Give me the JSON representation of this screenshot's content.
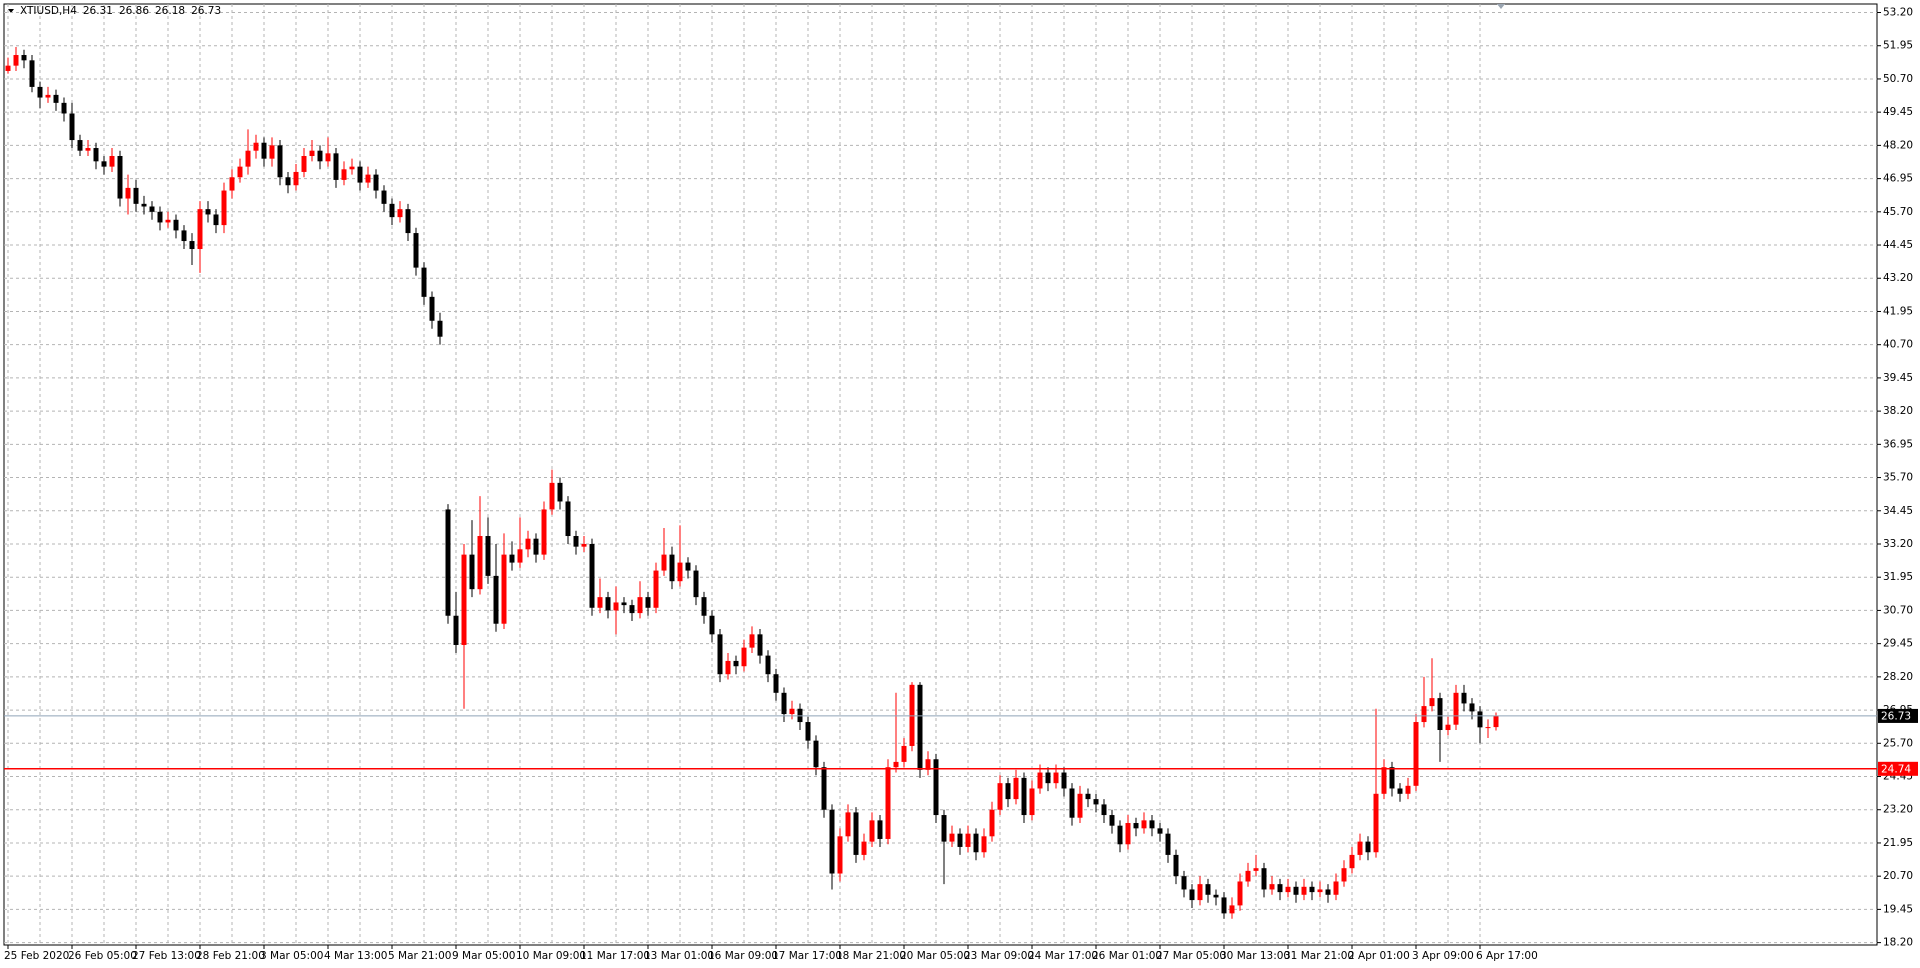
{
  "chart_data": {
    "type": "candlestick",
    "symbol": "XTIUSD,H4",
    "up_color": "#ff0000",
    "down_color": "#000000",
    "grid": true,
    "grid_color": "#b4b4b4",
    "bid_line_color": "#8fa3b8",
    "hline": {
      "value": 24.74,
      "color": "#ff0000"
    },
    "ylim": [
      18.11,
      53.52
    ],
    "yticks": [
      {
        "value": 53.2,
        "label": "53.20"
      },
      51.95,
      {
        "value": 50.7,
        "label": "50.70"
      },
      49.45,
      {
        "value": 48.2,
        "label": "48.20"
      },
      46.95,
      {
        "value": 45.7,
        "label": "45.70"
      },
      44.45,
      {
        "value": 43.2,
        "label": "43.20"
      },
      41.95,
      {
        "value": 40.7,
        "label": "40.70"
      },
      39.45,
      {
        "value": 38.2,
        "label": "38.20"
      },
      36.95,
      {
        "value": 35.7,
        "label": "35.70"
      },
      34.45,
      {
        "value": 33.2,
        "label": "33.20"
      },
      31.95,
      {
        "value": 30.7,
        "label": "30.70"
      },
      29.45,
      {
        "value": 28.2,
        "label": "28.20"
      },
      26.95,
      {
        "value": 25.7,
        "label": "25.70"
      },
      24.45,
      {
        "value": 23.2,
        "label": "23.20"
      },
      21.95,
      {
        "value": 20.7,
        "label": "20.70"
      },
      19.45,
      {
        "value": 18.2,
        "label": "18.20"
      }
    ],
    "categories": [
      "25 Feb 2020",
      null,
      null,
      null,
      null,
      null,
      null,
      null,
      "26 Feb 05:00",
      null,
      null,
      null,
      null,
      null,
      null,
      null,
      "27 Feb 13:00",
      null,
      null,
      null,
      null,
      null,
      null,
      null,
      "28 Feb 21:00",
      null,
      null,
      null,
      null,
      null,
      null,
      null,
      "3 Mar 05:00",
      null,
      null,
      null,
      null,
      null,
      null,
      null,
      "4 Mar 13:00",
      null,
      null,
      null,
      null,
      null,
      null,
      null,
      "5 Mar 21:00",
      null,
      null,
      null,
      null,
      null,
      null,
      null,
      "9 Mar 05:00",
      null,
      null,
      null,
      null,
      null,
      null,
      null,
      "10 Mar 09:00",
      null,
      null,
      null,
      null,
      null,
      null,
      null,
      "11 Mar 17:00",
      null,
      null,
      null,
      null,
      null,
      null,
      null,
      "13 Mar 01:00",
      null,
      null,
      null,
      null,
      null,
      null,
      null,
      "16 Mar 09:00",
      null,
      null,
      null,
      null,
      null,
      null,
      null,
      "17 Mar 17:00",
      null,
      null,
      null,
      null,
      null,
      null,
      null,
      "18 Mar 21:00",
      null,
      null,
      null,
      null,
      null,
      null,
      null,
      "20 Mar 05:00",
      null,
      null,
      null,
      null,
      null,
      null,
      null,
      "23 Mar 09:00",
      null,
      null,
      null,
      null,
      null,
      null,
      null,
      "24 Mar 17:00",
      null,
      null,
      null,
      null,
      null,
      null,
      null,
      "26 Mar 01:00",
      null,
      null,
      null,
      null,
      null,
      null,
      null,
      "27 Mar 05:00",
      null,
      null,
      null,
      null,
      null,
      null,
      null,
      "30 Mar 13:00",
      null,
      null,
      null,
      null,
      null,
      null,
      null,
      "31 Mar 21:00",
      null,
      null,
      null,
      null,
      null,
      null,
      null,
      "2 Apr 01:00",
      null,
      null,
      null,
      null,
      null,
      null,
      null,
      "3 Apr 09:00",
      null,
      null,
      null,
      null,
      null,
      null,
      null,
      "6 Apr 17:00",
      null,
      null
    ],
    "ohlc": [
      [
        51.0,
        51.5,
        50.9,
        51.2
      ],
      [
        51.2,
        51.9,
        51.0,
        51.6
      ],
      [
        51.6,
        51.8,
        51.1,
        51.4
      ],
      [
        51.4,
        51.6,
        50.2,
        50.4
      ],
      [
        50.4,
        50.6,
        49.6,
        50.0
      ],
      [
        50.0,
        50.4,
        49.8,
        50.1
      ],
      [
        50.1,
        50.3,
        49.5,
        49.8
      ],
      [
        49.8,
        50.0,
        49.1,
        49.4
      ],
      [
        49.4,
        49.8,
        48.1,
        48.4
      ],
      [
        48.4,
        48.6,
        47.8,
        48.0
      ],
      [
        48.0,
        48.4,
        47.8,
        48.1
      ],
      [
        48.1,
        48.3,
        47.3,
        47.6
      ],
      [
        47.6,
        47.8,
        47.1,
        47.4
      ],
      [
        47.4,
        48.1,
        47.2,
        47.8
      ],
      [
        47.8,
        48.0,
        45.9,
        46.2
      ],
      [
        46.2,
        47.1,
        45.6,
        46.6
      ],
      [
        46.6,
        46.9,
        45.7,
        46.0
      ],
      [
        46.0,
        46.3,
        45.6,
        45.9
      ],
      [
        45.9,
        46.1,
        45.4,
        45.7
      ],
      [
        45.7,
        45.9,
        45.0,
        45.3
      ],
      [
        45.3,
        45.7,
        45.1,
        45.4
      ],
      [
        45.4,
        45.6,
        44.7,
        45.0
      ],
      [
        45.0,
        45.2,
        44.3,
        44.6
      ],
      [
        44.6,
        44.9,
        43.7,
        44.3
      ],
      [
        44.3,
        46.1,
        43.4,
        45.8
      ],
      [
        45.8,
        46.1,
        45.3,
        45.6
      ],
      [
        45.6,
        45.8,
        44.9,
        45.2
      ],
      [
        45.2,
        46.8,
        44.9,
        46.5
      ],
      [
        46.5,
        47.3,
        46.2,
        47.0
      ],
      [
        47.0,
        47.7,
        46.8,
        47.4
      ],
      [
        47.4,
        48.8,
        47.1,
        48.0
      ],
      [
        48.0,
        48.6,
        47.7,
        48.3
      ],
      [
        48.3,
        48.5,
        47.4,
        47.7
      ],
      [
        47.7,
        48.5,
        47.4,
        48.2
      ],
      [
        48.2,
        48.4,
        46.7,
        47.0
      ],
      [
        47.0,
        47.2,
        46.4,
        46.7
      ],
      [
        46.7,
        47.5,
        46.5,
        47.2
      ],
      [
        47.2,
        48.1,
        47.0,
        47.8
      ],
      [
        47.8,
        48.4,
        47.6,
        48.0
      ],
      [
        48.0,
        48.2,
        47.3,
        47.6
      ],
      [
        47.6,
        48.5,
        47.4,
        47.9
      ],
      [
        47.9,
        48.1,
        46.6,
        46.9
      ],
      [
        46.9,
        47.6,
        46.7,
        47.3
      ],
      [
        47.3,
        47.7,
        47.1,
        47.4
      ],
      [
        47.4,
        47.6,
        46.5,
        46.8
      ],
      [
        46.8,
        47.4,
        46.6,
        47.1
      ],
      [
        47.1,
        47.3,
        46.2,
        46.5
      ],
      [
        46.5,
        46.7,
        45.7,
        46.0
      ],
      [
        46.0,
        46.2,
        45.2,
        45.5
      ],
      [
        45.5,
        46.1,
        45.3,
        45.8
      ],
      [
        45.8,
        46.0,
        44.6,
        44.9
      ],
      [
        44.9,
        45.1,
        43.3,
        43.6
      ],
      [
        43.6,
        43.8,
        42.2,
        42.5
      ],
      [
        42.5,
        42.7,
        41.3,
        41.6
      ],
      [
        41.6,
        41.9,
        40.7,
        41.0
      ],
      [
        34.5,
        34.7,
        30.2,
        30.5
      ],
      [
        30.5,
        31.4,
        29.1,
        29.4
      ],
      [
        29.4,
        33.2,
        27.0,
        32.8
      ],
      [
        32.8,
        34.1,
        31.2,
        31.5
      ],
      [
        31.5,
        35.0,
        31.3,
        33.5
      ],
      [
        33.5,
        34.2,
        31.7,
        32.0
      ],
      [
        32.0,
        33.2,
        29.9,
        30.2
      ],
      [
        30.2,
        33.6,
        30.0,
        32.8
      ],
      [
        32.8,
        33.3,
        32.2,
        32.5
      ],
      [
        32.5,
        34.2,
        32.3,
        33.0
      ],
      [
        33.0,
        33.7,
        32.7,
        33.4
      ],
      [
        33.4,
        33.6,
        32.5,
        32.8
      ],
      [
        32.8,
        34.8,
        32.6,
        34.5
      ],
      [
        34.5,
        36.0,
        34.3,
        35.5
      ],
      [
        35.5,
        35.7,
        34.5,
        34.8
      ],
      [
        34.8,
        35.0,
        33.2,
        33.5
      ],
      [
        33.5,
        33.7,
        32.8,
        33.1
      ],
      [
        33.1,
        33.5,
        32.9,
        33.2
      ],
      [
        33.2,
        33.4,
        30.5,
        30.8
      ],
      [
        30.8,
        31.9,
        30.6,
        31.2
      ],
      [
        31.2,
        31.4,
        30.4,
        30.7
      ],
      [
        30.7,
        31.6,
        29.8,
        31.0
      ],
      [
        31.0,
        31.2,
        30.6,
        30.9
      ],
      [
        30.9,
        31.1,
        30.3,
        30.6
      ],
      [
        30.6,
        31.8,
        30.4,
        31.2
      ],
      [
        31.2,
        31.4,
        30.5,
        30.8
      ],
      [
        30.8,
        32.5,
        30.6,
        32.2
      ],
      [
        32.2,
        33.8,
        32.0,
        32.8
      ],
      [
        32.8,
        33.1,
        31.5,
        31.8
      ],
      [
        31.8,
        33.9,
        31.6,
        32.5
      ],
      [
        32.5,
        32.7,
        31.9,
        32.2
      ],
      [
        32.2,
        32.4,
        30.9,
        31.2
      ],
      [
        31.2,
        31.4,
        30.2,
        30.5
      ],
      [
        30.5,
        30.7,
        29.5,
        29.8
      ],
      [
        29.8,
        30.0,
        28.0,
        28.3
      ],
      [
        28.3,
        29.1,
        28.1,
        28.8
      ],
      [
        28.8,
        29.0,
        28.3,
        28.6
      ],
      [
        28.6,
        29.6,
        28.4,
        29.3
      ],
      [
        29.3,
        30.1,
        29.1,
        29.8
      ],
      [
        29.8,
        30.0,
        28.7,
        29.0
      ],
      [
        29.0,
        29.2,
        28.0,
        28.3
      ],
      [
        28.3,
        28.5,
        27.3,
        27.6
      ],
      [
        27.6,
        27.8,
        26.5,
        26.8
      ],
      [
        26.8,
        27.3,
        26.6,
        27.0
      ],
      [
        27.0,
        27.2,
        26.2,
        26.5
      ],
      [
        26.5,
        26.7,
        25.5,
        25.8
      ],
      [
        25.8,
        26.0,
        24.5,
        24.8
      ],
      [
        24.8,
        25.0,
        22.9,
        23.2
      ],
      [
        23.2,
        23.4,
        20.2,
        20.8
      ],
      [
        20.8,
        22.5,
        20.5,
        22.2
      ],
      [
        22.2,
        23.4,
        22.0,
        23.1
      ],
      [
        23.1,
        23.3,
        21.2,
        21.5
      ],
      [
        21.5,
        22.3,
        21.3,
        22.0
      ],
      [
        22.0,
        23.1,
        21.8,
        22.8
      ],
      [
        22.8,
        23.0,
        21.8,
        22.1
      ],
      [
        22.1,
        25.1,
        21.9,
        24.8
      ],
      [
        24.8,
        27.6,
        24.6,
        25.0
      ],
      [
        25.0,
        25.9,
        24.8,
        25.6
      ],
      [
        25.6,
        28.0,
        25.4,
        27.9
      ],
      [
        27.9,
        28.0,
        24.4,
        24.7
      ],
      [
        24.7,
        25.4,
        24.5,
        25.1
      ],
      [
        25.1,
        25.3,
        22.7,
        23.0
      ],
      [
        23.0,
        23.2,
        20.4,
        22.0
      ],
      [
        22.0,
        22.6,
        21.8,
        22.3
      ],
      [
        22.3,
        22.5,
        21.5,
        21.8
      ],
      [
        21.8,
        22.6,
        21.6,
        22.3
      ],
      [
        22.3,
        22.5,
        21.3,
        21.6
      ],
      [
        21.6,
        22.5,
        21.4,
        22.2
      ],
      [
        22.2,
        23.5,
        22.0,
        23.2
      ],
      [
        23.2,
        24.5,
        23.0,
        24.2
      ],
      [
        24.2,
        24.4,
        23.3,
        23.6
      ],
      [
        23.6,
        24.7,
        23.4,
        24.4
      ],
      [
        24.4,
        24.6,
        22.7,
        23.0
      ],
      [
        23.0,
        24.3,
        22.8,
        24.0
      ],
      [
        24.0,
        24.9,
        23.8,
        24.6
      ],
      [
        24.6,
        24.8,
        23.9,
        24.2
      ],
      [
        24.2,
        24.9,
        24.0,
        24.6
      ],
      [
        24.6,
        24.8,
        23.7,
        24.0
      ],
      [
        24.0,
        24.2,
        22.6,
        22.9
      ],
      [
        22.9,
        24.1,
        22.7,
        23.8
      ],
      [
        23.8,
        24.0,
        23.3,
        23.6
      ],
      [
        23.6,
        23.8,
        23.1,
        23.4
      ],
      [
        23.4,
        23.6,
        22.7,
        23.0
      ],
      [
        23.0,
        23.2,
        22.3,
        22.6
      ],
      [
        22.6,
        22.8,
        21.6,
        21.9
      ],
      [
        21.9,
        23.0,
        21.7,
        22.7
      ],
      [
        22.7,
        22.9,
        22.2,
        22.5
      ],
      [
        22.5,
        23.1,
        22.3,
        22.8
      ],
      [
        22.8,
        23.0,
        22.2,
        22.5
      ],
      [
        22.5,
        22.7,
        22.0,
        22.3
      ],
      [
        22.3,
        22.5,
        21.2,
        21.5
      ],
      [
        21.5,
        21.7,
        20.4,
        20.7
      ],
      [
        20.7,
        20.9,
        19.9,
        20.2
      ],
      [
        20.2,
        20.4,
        19.5,
        19.8
      ],
      [
        19.8,
        20.7,
        19.6,
        20.4
      ],
      [
        20.4,
        20.6,
        19.7,
        20.0
      ],
      [
        20.0,
        20.2,
        19.6,
        19.9
      ],
      [
        19.9,
        20.1,
        19.1,
        19.3
      ],
      [
        19.3,
        19.9,
        19.1,
        19.6
      ],
      [
        19.6,
        20.8,
        19.4,
        20.5
      ],
      [
        20.5,
        21.2,
        20.3,
        20.9
      ],
      [
        20.9,
        21.5,
        20.7,
        21.0
      ],
      [
        21.0,
        21.2,
        19.9,
        20.2
      ],
      [
        20.2,
        20.7,
        20.0,
        20.4
      ],
      [
        20.4,
        20.6,
        19.8,
        20.1
      ],
      [
        20.1,
        20.6,
        19.9,
        20.3
      ],
      [
        20.3,
        20.5,
        19.7,
        20.0
      ],
      [
        20.0,
        20.6,
        19.8,
        20.3
      ],
      [
        20.3,
        20.5,
        19.8,
        20.1
      ],
      [
        20.1,
        20.5,
        19.9,
        20.2
      ],
      [
        20.2,
        20.4,
        19.7,
        20.0
      ],
      [
        20.0,
        20.8,
        19.8,
        20.5
      ],
      [
        20.5,
        21.3,
        20.3,
        21.0
      ],
      [
        21.0,
        21.8,
        20.8,
        21.5
      ],
      [
        21.5,
        22.3,
        21.3,
        22.0
      ],
      [
        22.0,
        22.2,
        21.3,
        21.6
      ],
      [
        21.6,
        27.0,
        21.4,
        23.8
      ],
      [
        23.8,
        25.1,
        23.6,
        24.8
      ],
      [
        24.8,
        25.0,
        23.7,
        24.0
      ],
      [
        24.0,
        24.2,
        23.5,
        23.8
      ],
      [
        23.8,
        24.4,
        23.6,
        24.1
      ],
      [
        24.1,
        26.8,
        23.9,
        26.5
      ],
      [
        26.5,
        28.2,
        26.3,
        27.1
      ],
      [
        27.1,
        28.9,
        26.9,
        27.4
      ],
      [
        27.4,
        27.6,
        25.0,
        26.2
      ],
      [
        26.2,
        26.7,
        26.0,
        26.4
      ],
      [
        26.4,
        27.9,
        26.2,
        27.6
      ],
      [
        27.6,
        27.9,
        26.9,
        27.2
      ],
      [
        27.2,
        27.4,
        26.6,
        26.9
      ],
      [
        26.9,
        27.1,
        25.7,
        26.3
      ],
      [
        26.3,
        26.6,
        25.9,
        26.31
      ],
      [
        26.31,
        26.86,
        26.18,
        26.73
      ]
    ]
  }
}
